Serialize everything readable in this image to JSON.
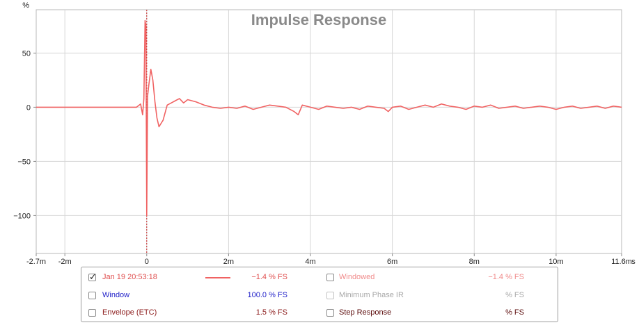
{
  "chart_data": {
    "type": "line",
    "title": "Impulse Response",
    "ylabel": "%",
    "xunit": "s",
    "xlim": [
      -0.0027,
      0.0116
    ],
    "ylim": [
      -135,
      90
    ],
    "grid": true,
    "x_ticks": [
      {
        "value": -0.0027,
        "label": "-2.7m"
      },
      {
        "value": -0.002,
        "label": "-2m"
      },
      {
        "value": 0,
        "label": "0"
      },
      {
        "value": 0.002,
        "label": "2m"
      },
      {
        "value": 0.004,
        "label": "4m"
      },
      {
        "value": 0.006,
        "label": "6m"
      },
      {
        "value": 0.008,
        "label": "8m"
      },
      {
        "value": 0.01,
        "label": "10m"
      },
      {
        "value": 0.0116,
        "label": "11.6m"
      }
    ],
    "y_ticks": [
      {
        "value": 50,
        "label": "50"
      },
      {
        "value": 0,
        "label": "0"
      },
      {
        "value": -50,
        "label": "-50"
      },
      {
        "value": -100,
        "label": "-100"
      }
    ],
    "marker_x": 0,
    "series": [
      {
        "name": "Jan 19 20:53:18",
        "color": "#f06262",
        "x": [
          -0.0027,
          -0.00025,
          -0.00015,
          -0.0001,
          -7e-05,
          -4e-05,
          -2e-05,
          0,
          2e-05,
          5e-05,
          0.0001,
          0.00015,
          0.0002,
          0.00025,
          0.0003,
          0.0004,
          0.0005,
          0.0006,
          0.0007,
          0.0008,
          0.0009,
          0.001,
          0.0012,
          0.0014,
          0.0016,
          0.0018,
          0.002,
          0.0022,
          0.0024,
          0.0026,
          0.0028,
          0.003,
          0.0032,
          0.0034,
          0.0036,
          0.0037,
          0.0038,
          0.004,
          0.0042,
          0.0044,
          0.0046,
          0.0048,
          0.005,
          0.0052,
          0.0054,
          0.0056,
          0.0058,
          0.0059,
          0.006,
          0.0062,
          0.0064,
          0.0066,
          0.0068,
          0.007,
          0.0072,
          0.0074,
          0.0076,
          0.0078,
          0.008,
          0.0082,
          0.0084,
          0.0086,
          0.0088,
          0.009,
          0.0092,
          0.0094,
          0.0096,
          0.0098,
          0.01,
          0.0102,
          0.0104,
          0.0106,
          0.0108,
          0.011,
          0.0112,
          0.0114,
          0.0116
        ],
        "y": [
          0,
          0,
          3,
          -7,
          8,
          80,
          75,
          -100,
          10,
          20,
          35,
          25,
          5,
          -10,
          -18,
          -12,
          2,
          4,
          6,
          8,
          4,
          7,
          5,
          2,
          0,
          -1,
          0,
          -1,
          1,
          -2,
          0,
          2,
          1,
          0,
          -4,
          -7,
          2,
          0,
          -2,
          1,
          0,
          -1,
          0,
          -2,
          1,
          0,
          -1,
          -4,
          0,
          1,
          -2,
          0,
          2,
          0,
          3,
          1,
          0,
          -2,
          1,
          0,
          2,
          -1,
          0,
          1,
          -1,
          0,
          1,
          0,
          -2,
          0,
          1,
          -1,
          0,
          1,
          -1,
          1,
          0
        ]
      }
    ]
  },
  "legend": {
    "rows": [
      {
        "left_label": "Jan 19 20:53:18",
        "left_value": "−1.4 % FS",
        "left_checked": true,
        "right_label": "Windowed",
        "right_value": "−1.4 % FS"
      },
      {
        "left_label": "Window",
        "left_value": "100.0 % FS",
        "left_checked": false,
        "right_label": "Minimum Phase IR",
        "right_value": "% FS"
      },
      {
        "left_label": "Envelope (ETC)",
        "left_value": "1.5 % FS",
        "left_checked": false,
        "right_label": "Step Response",
        "right_value": "% FS"
      }
    ],
    "colors": {
      "trace": "#f06262",
      "window": "#1e1ec8",
      "envelope": "#8b1a1a",
      "windowed": "#f08a8a",
      "disabled": "#a8a8a8",
      "step": "#5a0a0a"
    }
  }
}
